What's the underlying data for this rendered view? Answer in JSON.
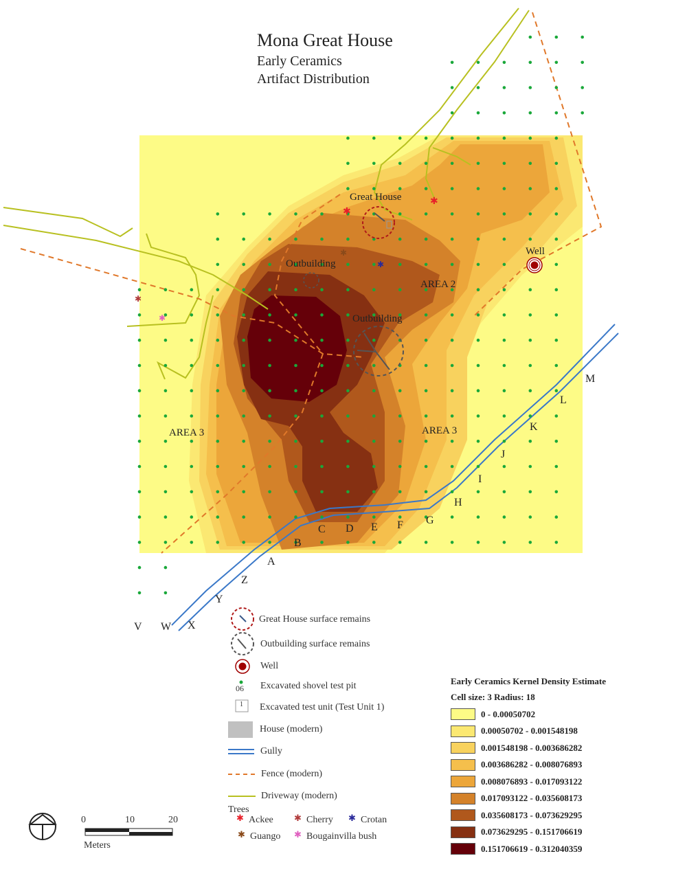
{
  "title": {
    "main": "Mona Great House",
    "sub1": "Early Ceramics",
    "sub2": "Artifact Distribution"
  },
  "map_labels": {
    "great_house": "Great House",
    "outbuilding_1": "Outbuilding",
    "outbuilding_2": "Outbuilding",
    "well": "Well",
    "area2": "AREA 2",
    "area3_left": "AREA 3",
    "area3_right": "AREA 3"
  },
  "grid_letters": [
    "A",
    "B",
    "C",
    "D",
    "E",
    "F",
    "G",
    "H",
    "I",
    "J",
    "K",
    "L",
    "M",
    "V",
    "W",
    "X",
    "Y",
    "Z"
  ],
  "legend": {
    "great_house_remains": "Great House surface remains",
    "outbuilding_remains": "Outbuilding surface remains",
    "well": "Well",
    "shovel_pit_number": "06",
    "shovel_pit": "Excavated shovel test pit",
    "test_unit_number": "1",
    "test_unit": "Excavated test unit (Test Unit 1)",
    "house": "House (modern)",
    "gully": "Gully",
    "fence": "Fence (modern)",
    "driveway": "Driveway (modern)",
    "trees_title": "Trees",
    "trees": [
      "Ackee",
      "Cherry",
      "Crotan",
      "Guango",
      "Bougainvilla bush"
    ]
  },
  "tree_colors": {
    "Ackee": "#e8202a",
    "Cherry": "#b03a3a",
    "Crotan": "#2a2a9a",
    "Guango": "#8a4a1a",
    "Bougainvilla bush": "#e060c0"
  },
  "kde": {
    "title": "Early Ceramics Kernel Density Estimate",
    "subtitle": "Cell size: 3  Radius: 18",
    "classes": [
      {
        "label": "0 - 0.00050702",
        "color": "#fdfb86"
      },
      {
        "label": "0.00050702 - 0.001548198",
        "color": "#fbe872"
      },
      {
        "label": "0.001548198 - 0.003686282",
        "color": "#f8d25e"
      },
      {
        "label": "0.003686282 - 0.008076893",
        "color": "#f5bf4c"
      },
      {
        "label": "0.008076893 - 0.017093122",
        "color": "#eca63a"
      },
      {
        "label": "0.017093122 - 0.035608173",
        "color": "#d4822a"
      },
      {
        "label": "0.035608173 - 0.073629295",
        "color": "#b0581c"
      },
      {
        "label": "0.073629295 - 0.151706619",
        "color": "#863012"
      },
      {
        "label": "0.151706619 - 0.312040359",
        "color": "#650009"
      }
    ]
  },
  "scale": {
    "ticks": [
      "0",
      "10",
      "20"
    ],
    "unit": "Meters"
  },
  "colors": {
    "gully": "#3a78c8",
    "fence": "#e0782a",
    "driveway": "#b8c020",
    "pits": "#1aa83a",
    "great_house_ring": "#b01a1a",
    "outbuilding_ring": "#555555",
    "well": "#a00000"
  }
}
